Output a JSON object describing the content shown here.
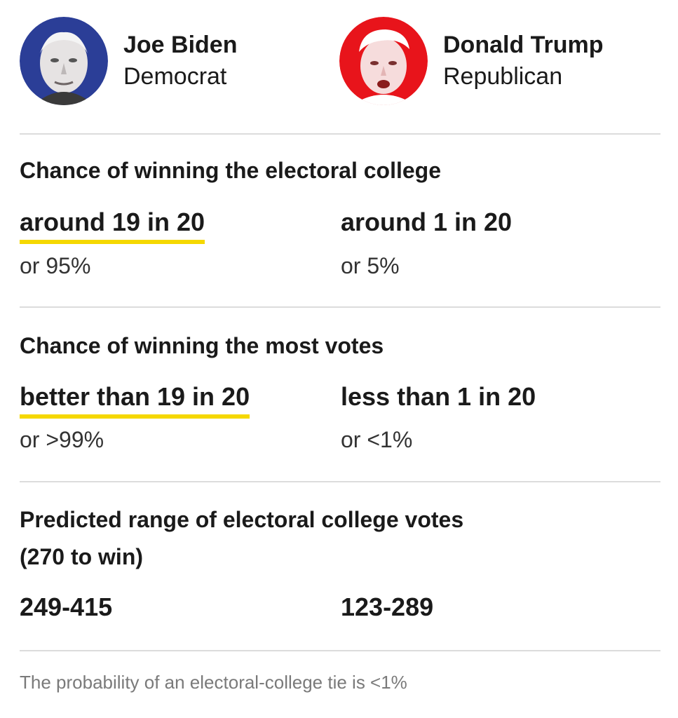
{
  "candidates": [
    {
      "name": "Joe Biden",
      "party": "Democrat",
      "avatar_color": "#2b3e97"
    },
    {
      "name": "Donald Trump",
      "party": "Republican",
      "avatar_color": "#e8141b"
    }
  ],
  "sections": {
    "electoral_college": {
      "title": "Chance of winning the electoral college",
      "biden": {
        "label": "around 19 in 20",
        "percent": "or 95%"
      },
      "trump": {
        "label": "around 1 in 20",
        "percent": "or 5%"
      }
    },
    "popular_vote": {
      "title": "Chance of winning the most votes",
      "biden": {
        "label": "better than 19 in 20",
        "percent": "or >99%"
      },
      "trump": {
        "label": "less than 1 in 20",
        "percent": "or <1%"
      }
    },
    "vote_range": {
      "title_line1": "Predicted range of electoral college votes",
      "title_line2": "(270 to win)",
      "biden": "249-415",
      "trump": "123-289"
    }
  },
  "footnote": "The probability of an electoral-college tie is <1%",
  "colors": {
    "highlight": "#f5d800",
    "divider": "#dcdcdc"
  }
}
